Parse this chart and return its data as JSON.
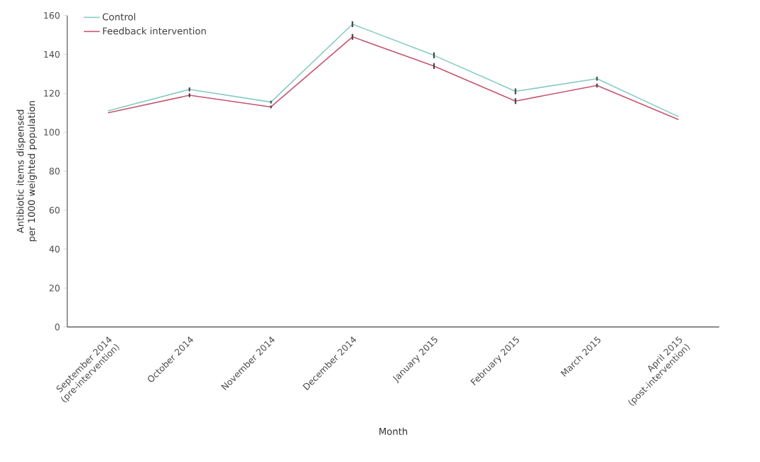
{
  "chart_data": {
    "type": "line",
    "xlabel": "Month",
    "ylabel": "Antibiotic items dispensed per 1000 weighted population",
    "categories": [
      "September 2014 (pre-intervention)",
      "October 2014",
      "November 2014",
      "December 2014",
      "January 2015",
      "February 2015",
      "March 2015",
      "April 2015 (post-intervention)"
    ],
    "series": [
      {
        "name": "Control",
        "color": "#86cbc3",
        "values": [
          111,
          122,
          115.5,
          155.5,
          139.5,
          121,
          127.5,
          108
        ],
        "errors": [
          null,
          1,
          0.7,
          1.5,
          1.5,
          1.5,
          1,
          null
        ]
      },
      {
        "name": "Feedback intervention",
        "color": "#c4566f",
        "values": [
          110,
          119,
          113,
          149,
          134,
          116,
          124,
          106.5
        ],
        "errors": [
          null,
          1,
          0.7,
          1.5,
          1.5,
          1.5,
          1,
          null
        ]
      }
    ],
    "ylim": [
      0,
      160
    ],
    "yticks": [
      0,
      20,
      40,
      60,
      80,
      100,
      120,
      140,
      160
    ],
    "legend": "top left",
    "grid": false,
    "marker": "none",
    "line_style": "solid"
  }
}
